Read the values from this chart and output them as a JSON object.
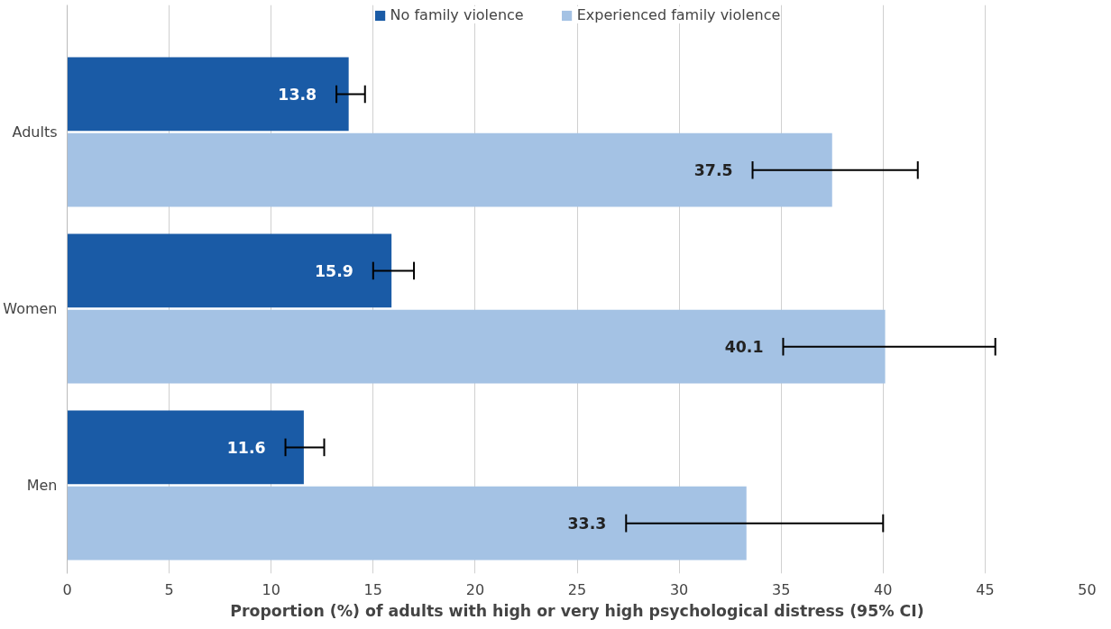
{
  "chart_data": {
    "type": "bar",
    "orientation": "horizontal",
    "categories": [
      "Adults",
      "Women",
      "Men"
    ],
    "series": [
      {
        "name": "No family violence",
        "color": "#1a5ba6",
        "values": [
          13.8,
          15.9,
          11.6
        ],
        "errors": [
          [
            13.2,
            14.6
          ],
          [
            15.0,
            17.0
          ],
          [
            10.7,
            12.6
          ]
        ]
      },
      {
        "name": "Experienced family violence",
        "color": "#a4c2e4",
        "values": [
          37.5,
          40.1,
          33.3
        ],
        "errors": [
          [
            33.6,
            41.7
          ],
          [
            35.1,
            45.5
          ],
          [
            27.4,
            40.0
          ]
        ]
      }
    ],
    "xlim": [
      0,
      50
    ],
    "xticks": [
      0,
      5,
      10,
      15,
      20,
      25,
      30,
      35,
      40,
      45,
      50
    ],
    "xlabel": "Proportion (%) of adults with high or very high psychological distress (95% CI)",
    "legend": "top",
    "grid": "x",
    "data_labels": true
  }
}
